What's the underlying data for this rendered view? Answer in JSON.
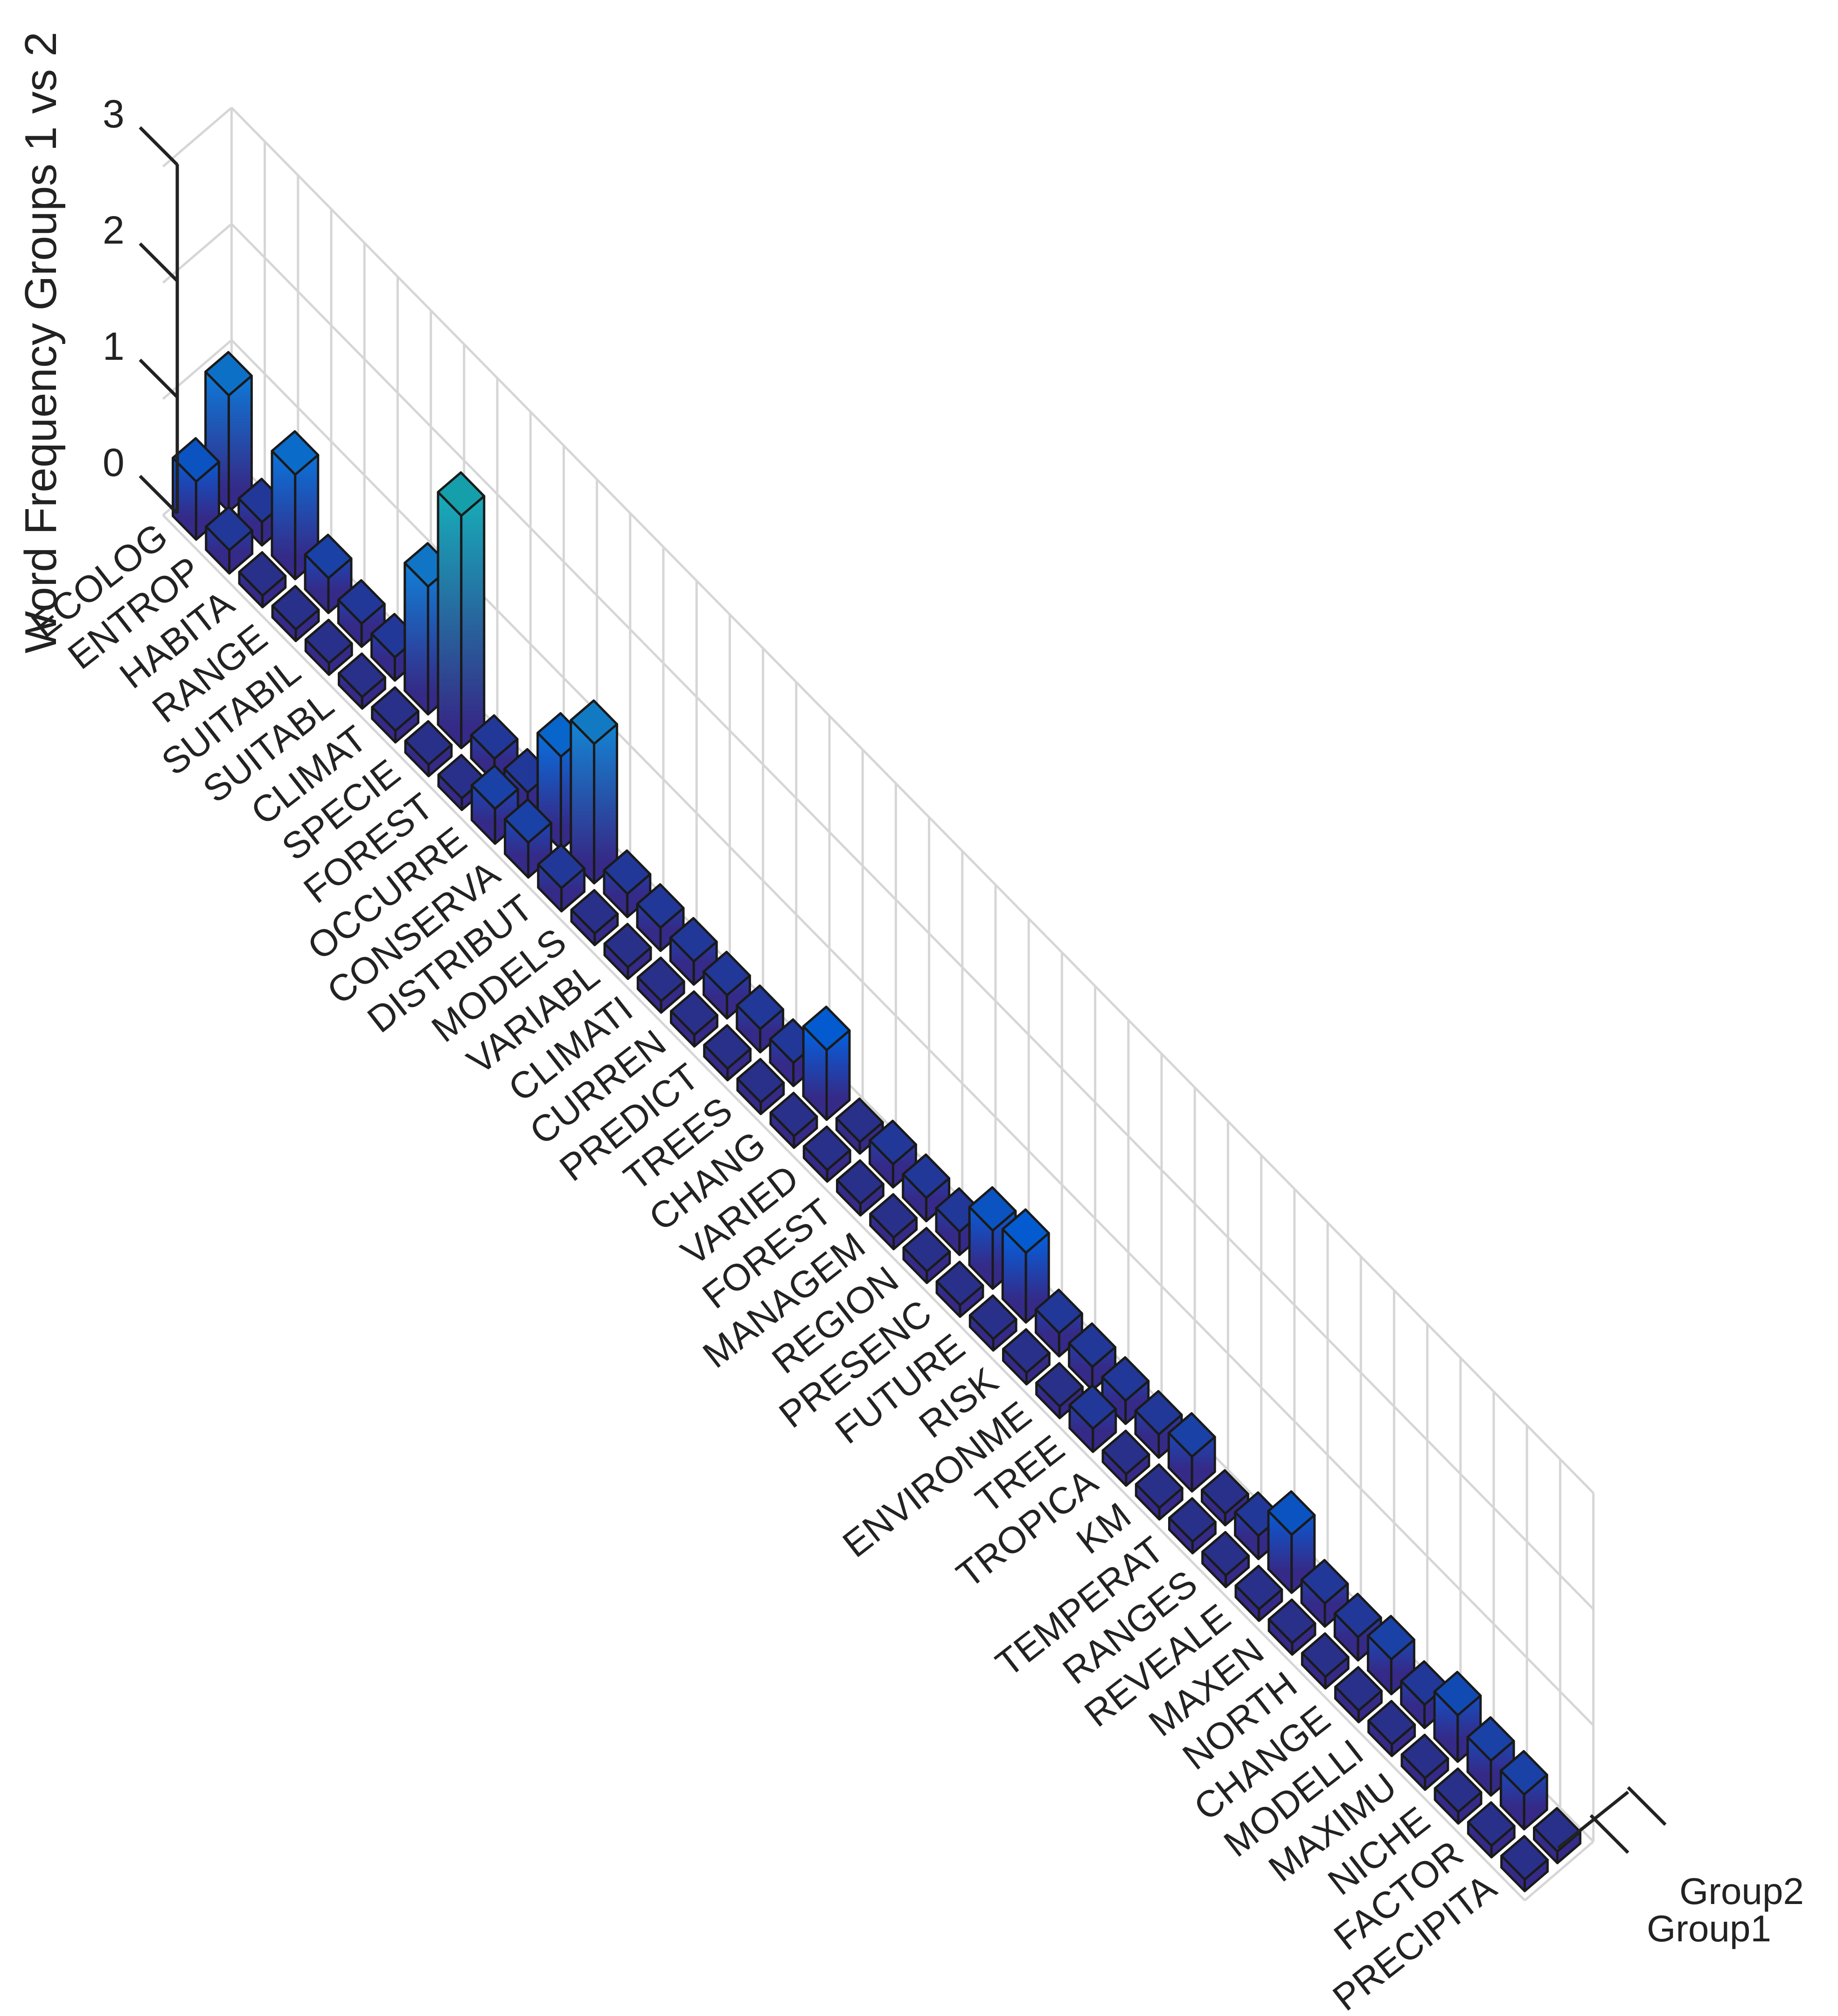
{
  "chart_data": {
    "type": "bar3d",
    "title": "",
    "zlabel": "Word Frequency Groups 1 vs 2",
    "zlim": [
      0,
      3
    ],
    "zticks": [
      "0",
      "1",
      "2",
      "3"
    ],
    "series": [
      {
        "name": "Group1",
        "values": [
          0.5,
          0.2,
          0.1,
          0.1,
          0.1,
          0.1,
          0.1,
          0.1,
          0.1,
          0.3,
          0.3,
          0.2,
          0.1,
          0.1,
          0.1,
          0.1,
          0.1,
          0.1,
          0.1,
          0.1,
          0.1,
          0.1,
          0.1,
          0.1,
          0.1,
          0.1,
          0.1,
          0.2,
          0.1,
          0.1,
          0.1,
          0.1,
          0.1,
          0.1,
          0.1,
          0.1,
          0.1,
          0.1,
          0.1,
          0.1,
          0.1
        ]
      },
      {
        "name": "Group2",
        "values": [
          1.0,
          0.2,
          0.9,
          0.3,
          0.2,
          0.2,
          1.1,
          2.0,
          0.2,
          0.2,
          0.8,
          1.2,
          0.2,
          0.2,
          0.2,
          0.2,
          0.2,
          0.2,
          0.6,
          0.1,
          0.2,
          0.2,
          0.2,
          0.5,
          0.6,
          0.2,
          0.2,
          0.2,
          0.2,
          0.3,
          0.1,
          0.2,
          0.5,
          0.2,
          0.2,
          0.3,
          0.2,
          0.4,
          0.3,
          0.3,
          0.1
        ]
      }
    ],
    "categories": [
      "ECOLOG",
      "ENTROP",
      "HABITA",
      "RANGE",
      "SUITABIL",
      "SUITABL",
      "CLIMAT",
      "SPECIE",
      "FOREST",
      "OCCURRE",
      "CONSERVA",
      "DISTRIBUT",
      "MODELS",
      "VARIABL",
      "CLIMATI",
      "CURREN",
      "PREDICT",
      "TREES",
      "CHANG",
      "VARIED",
      "FOREST",
      "MANAGEM",
      "REGION",
      "PRESENC",
      "FUTURE",
      "RISK",
      "ENVIRONME",
      "TREE",
      "TROPICA",
      "KM",
      "TEMPERAT",
      "RANGES",
      "REVEALE",
      "MAXEN",
      "NORTH",
      "CHANGE",
      "MODELLI",
      "MAXIMU",
      "NICHE",
      "FACTOR",
      "PRECIPITA"
    ],
    "grid": true,
    "colormap": "parula"
  }
}
